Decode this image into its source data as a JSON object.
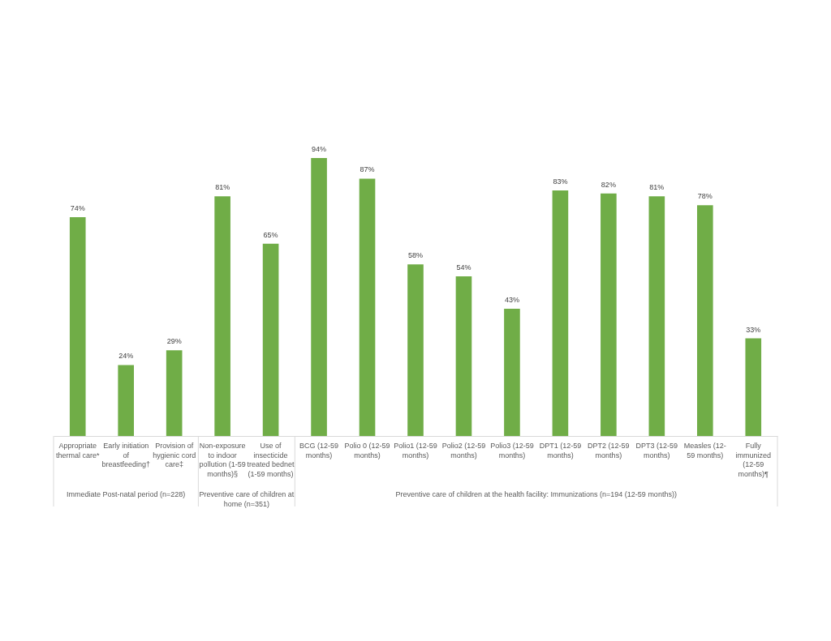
{
  "chart_data": {
    "type": "bar",
    "categories": [
      "Appropriate thermal care*",
      "Early initiation of breastfeeding†",
      "Provision of hygienic cord care‡",
      "Non-exposure to indoor pollution (1-59 months)§",
      "Use of insecticide treated bednet (1-59 months)",
      "BCG (12-59 months)",
      "Polio 0 (12-59 months)",
      "Polio1 (12-59 months)",
      "Polio2 (12-59 months)",
      "Polio3 (12-59 months)",
      "DPT1 (12-59 months)",
      "DPT2 (12-59 months)",
      "DPT3 (12-59 months)",
      "Measles (12-59 months)",
      "Fully immunized (12-59 months)¶"
    ],
    "values": [
      74,
      24,
      29,
      81,
      65,
      94,
      87,
      58,
      54,
      43,
      83,
      82,
      81,
      78,
      33
    ],
    "value_labels": [
      "74%",
      "24%",
      "29%",
      "81%",
      "65%",
      "94%",
      "87%",
      "58%",
      "54%",
      "43%",
      "83%",
      "82%",
      "81%",
      "78%",
      "33%"
    ],
    "color": "#70ad47",
    "annotations": [
      "Immediate Post-natal period (n=228)",
      "Preventive care of children at home (n=351)",
      "Preventive care of children at the health facility: Immunizations (n=194 (12-59 months))"
    ]
  }
}
